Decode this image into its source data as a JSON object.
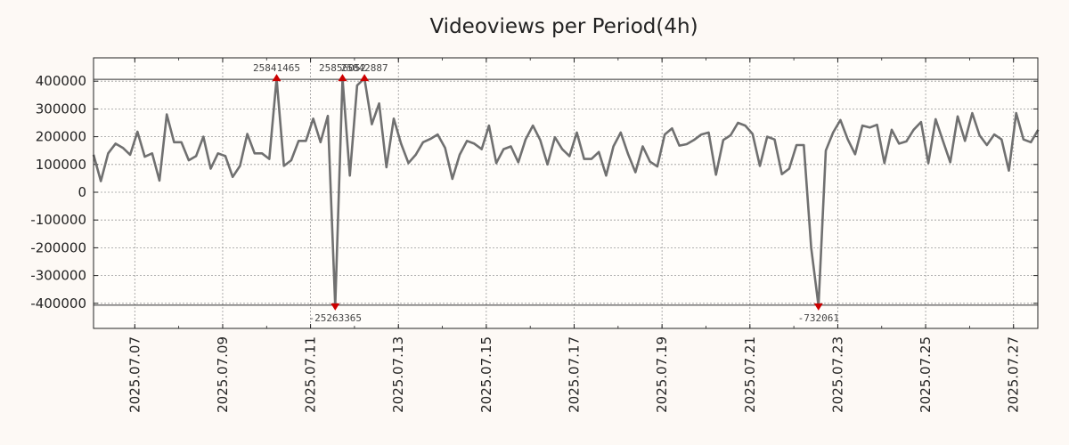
{
  "chart_data": {
    "type": "line",
    "title": "Videoviews per Period(4h)",
    "xlabel": "",
    "ylabel": "",
    "grid": true,
    "colors": {
      "line": "#707070",
      "marker": "#cc0000",
      "grid": "#999999",
      "background": "#fdf9f5",
      "plot_background": "#fffdfa"
    },
    "x_range": [
      2025.0706,
      2025.0728
    ],
    "ylim": [
      -490000,
      490000
    ],
    "y_ticks": [
      400000,
      300000,
      200000,
      100000,
      0,
      -100000,
      -200000,
      -300000,
      -400000
    ],
    "y_tick_labels": [
      "400000",
      "300000",
      "200000",
      "100000",
      "0",
      "-100000",
      "-200000",
      "-300000",
      "-400000"
    ],
    "x_tick_labels": [
      "2025.07.07",
      "2025.07.09",
      "2025.07.11",
      "2025.07.13",
      "2025.07.15",
      "2025.07.17",
      "2025.07.19",
      "2025.07.21",
      "2025.07.23",
      "2025.07.25",
      "2025.07.27"
    ],
    "x_tick_days": [
      1,
      3,
      5,
      7,
      9,
      11,
      13,
      15,
      17,
      19,
      21
    ],
    "clip_lines": [
      410000,
      -410000
    ],
    "period_hours": 4,
    "series": [
      {
        "name": "Videoviews",
        "values": [
          135000,
          40000,
          140000,
          175000,
          160000,
          135000,
          218000,
          128000,
          140000,
          42000,
          280000,
          180000,
          180000,
          115000,
          130000,
          200000,
          85000,
          140000,
          130000,
          55000,
          95000,
          210000,
          140000,
          140000,
          120000,
          410000,
          95000,
          115000,
          185000,
          185000,
          265000,
          180000,
          275000,
          -410000,
          410000,
          60000,
          385000,
          410000,
          245000,
          320000,
          90000,
          265000,
          175000,
          105000,
          135000,
          180000,
          192000,
          208000,
          160000,
          48000,
          135000,
          185000,
          175000,
          155000,
          240000,
          105000,
          155000,
          165000,
          108000,
          190000,
          240000,
          188000,
          100000,
          198000,
          155000,
          130000,
          215000,
          120000,
          120000,
          145000,
          60000,
          165000,
          215000,
          137000,
          72000,
          165000,
          110000,
          93000,
          208000,
          230000,
          168000,
          173000,
          188000,
          208000,
          215000,
          63000,
          188000,
          205000,
          250000,
          240000,
          210000,
          95000,
          200000,
          190000,
          65000,
          85000,
          170000,
          170000,
          -200000,
          -410000,
          150000,
          215000,
          260000,
          190000,
          137000,
          240000,
          233000,
          243000,
          105000,
          225000,
          175000,
          183000,
          225000,
          253000,
          105000,
          263000,
          185000,
          108000,
          273000,
          185000,
          285000,
          205000,
          170000,
          208000,
          190000,
          78000,
          285000,
          190000,
          180000,
          225000
        ]
      }
    ],
    "annotations": [
      {
        "index": 25,
        "label": "25841465",
        "direction": "up"
      },
      {
        "index": 33,
        "label": "-25263365",
        "direction": "down"
      },
      {
        "index": 34,
        "label": "25856052",
        "direction": "up"
      },
      {
        "index": 37,
        "label": "25842887",
        "direction": "up"
      },
      {
        "index": 99,
        "label": "-732061",
        "direction": "down"
      }
    ]
  }
}
